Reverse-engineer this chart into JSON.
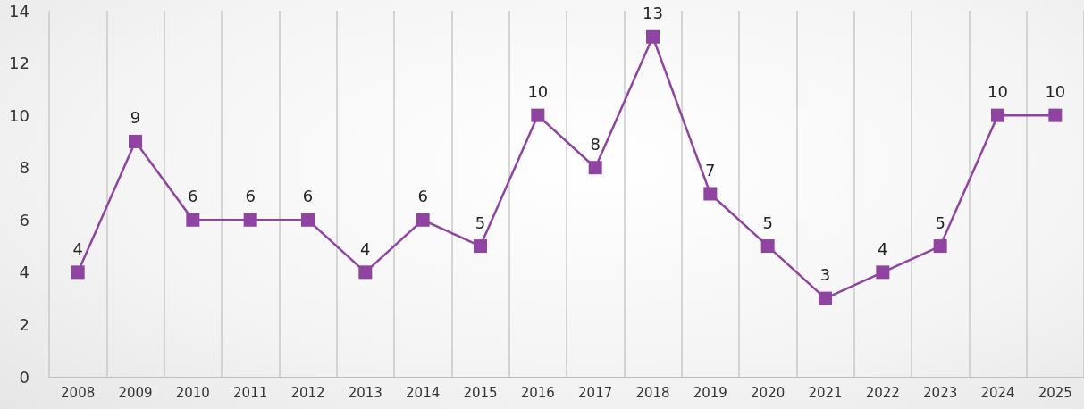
{
  "chart_data": {
    "type": "line",
    "categories": [
      "2008",
      "2009",
      "2010",
      "2011",
      "2012",
      "2013",
      "2014",
      "2015",
      "2016",
      "2017",
      "2018",
      "2019",
      "2020",
      "2021",
      "2022",
      "2023",
      "2024",
      "2025"
    ],
    "series": [
      {
        "color": "#8e44a0",
        "values": [
          4,
          9,
          6,
          6,
          6,
          4,
          6,
          5,
          10,
          8,
          13,
          7,
          5,
          3,
          4,
          5,
          10,
          10
        ]
      }
    ],
    "ylim": [
      0,
      14
    ],
    "yticks": [
      0,
      2,
      4,
      6,
      8,
      10,
      12,
      14
    ],
    "grid": "x",
    "marker": "square",
    "line_style": "solid",
    "data_labels": true
  }
}
